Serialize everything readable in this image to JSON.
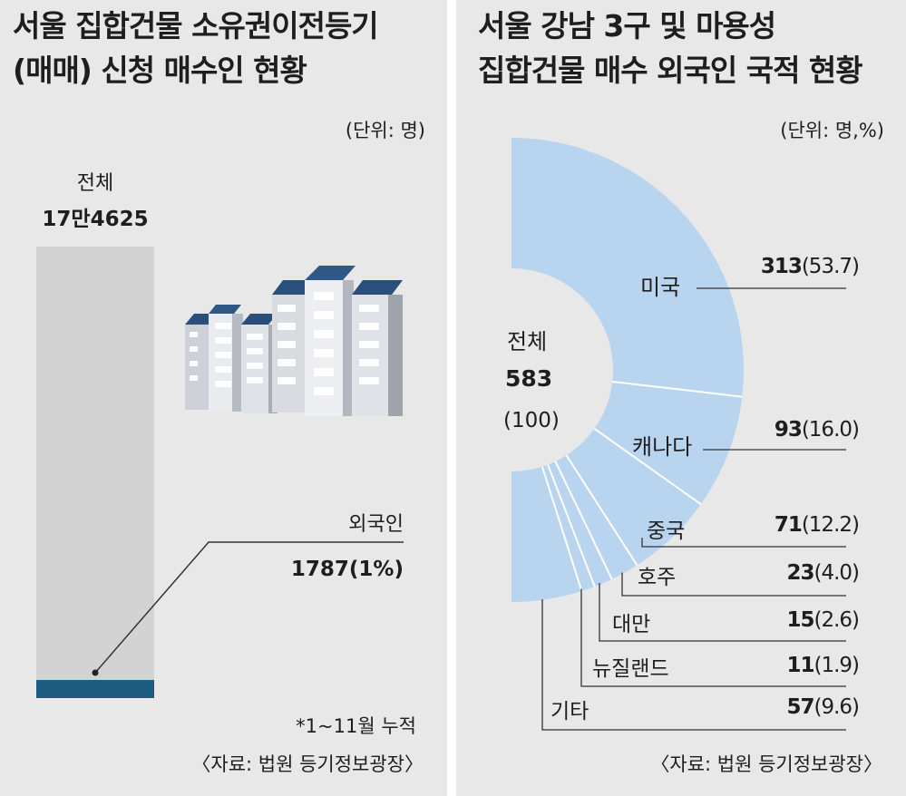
{
  "left": {
    "title_line1": "서울 집합건물 소유권이전등기",
    "title_line2": "(매매) 신청 매수인 현황",
    "unit": "(단위: 명)",
    "total_label": "전체",
    "total_value": "17만4625",
    "foreign_label": "외국인",
    "foreign_value": "1787(1%)",
    "note": "*1~11월 누적",
    "source": "〈자료: 법원 등기정보광장〉"
  },
  "right": {
    "title_line1": "서울 강남 3구 및 마용성",
    "title_line2": "집합건물 매수 외국인 국적 현황",
    "unit": "(단위: 명,%)",
    "center_label": "전체",
    "center_value": "583",
    "center_pct": "(100)",
    "source": "〈자료: 법원 등기정보광장〉"
  },
  "colors": {
    "panel_bg": "#e8e8e8",
    "bar_total": "#d3d3d3",
    "bar_foreign": "#1f5c82",
    "donut": "#b8d4ef",
    "text": "#1e1e1e"
  },
  "chart_data": [
    {
      "type": "bar",
      "categories": [
        "전체",
        "외국인"
      ],
      "values": [
        174625,
        1787
      ],
      "value_labels": [
        "17만4625",
        "1787(1%)"
      ],
      "foreign_share_percent": 1
    },
    {
      "type": "pie",
      "variant": "half-donut",
      "total": 583,
      "categories": [
        "미국",
        "캐나다",
        "중국",
        "호주",
        "대만",
        "뉴질랜드",
        "기타"
      ],
      "values": [
        313,
        93,
        71,
        23,
        15,
        11,
        57
      ],
      "percents": [
        53.7,
        16.0,
        12.2,
        4.0,
        2.6,
        1.9,
        9.6
      ],
      "value_labels": [
        "313",
        "93",
        "71",
        "23",
        "15",
        "11",
        "57"
      ],
      "percent_labels": [
        "(53.7)",
        "(16.0)",
        "(12.2)",
        "(4.0)",
        "(2.6)",
        "(1.9)",
        "(9.6)"
      ]
    }
  ]
}
